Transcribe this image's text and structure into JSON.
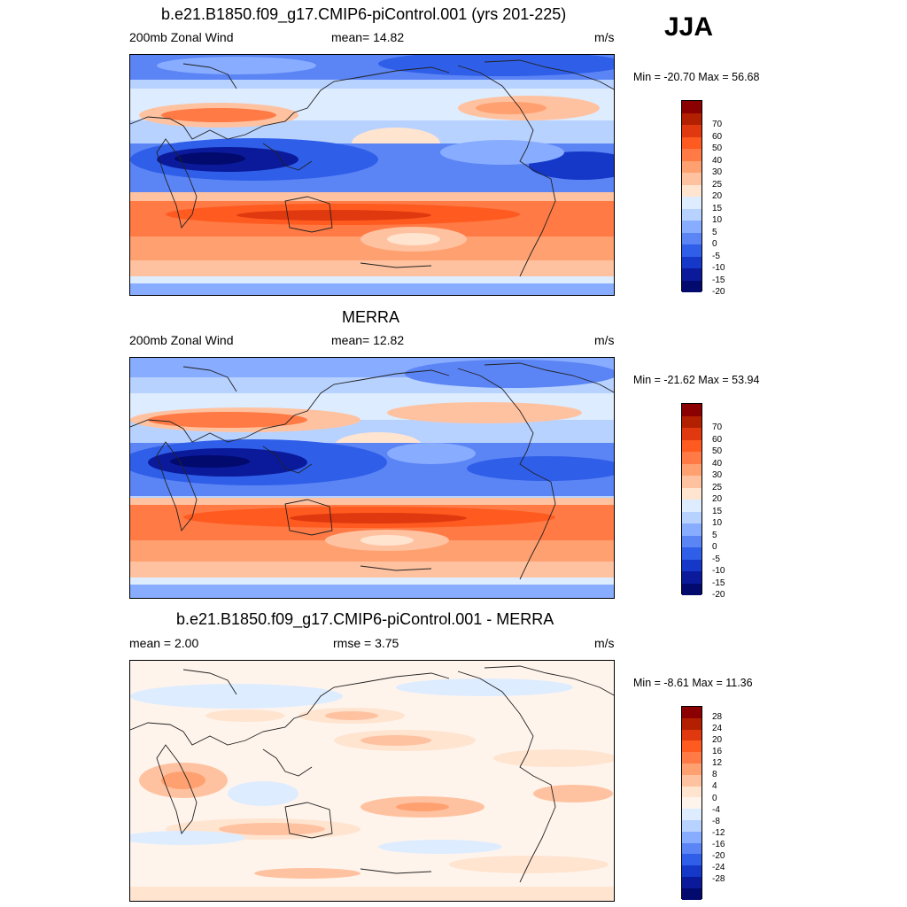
{
  "season": "JJA",
  "panels": [
    {
      "title": "b.e21.B1850.f09_g17.CMIP6-piControl.001 (yrs 201-225)",
      "left": "200mb Zonal Wind",
      "mid": "mean=  14.82",
      "units": "m/s",
      "minmax": "Min = -20.70 Max =  56.68",
      "colorbar_labels": [
        "70",
        "60",
        "50",
        "40",
        "30",
        "25",
        "20",
        "15",
        "10",
        "5",
        "0",
        "-5",
        "-10",
        "-15",
        "-20"
      ]
    },
    {
      "title": "MERRA",
      "left": "200mb Zonal Wind",
      "mid": "mean=  12.82",
      "units": "m/s",
      "minmax": "Min = -21.62 Max =  53.94",
      "colorbar_labels": [
        "70",
        "60",
        "50",
        "40",
        "30",
        "25",
        "20",
        "15",
        "10",
        "5",
        "0",
        "-5",
        "-10",
        "-15",
        "-20"
      ]
    },
    {
      "title": "b.e21.B1850.f09_g17.CMIP6-piControl.001 - MERRA",
      "left": "mean =   2.00",
      "mid": "rmse =   3.75",
      "units": "m/s",
      "minmax": "Min =  -8.61 Max =  11.36",
      "colorbar_labels": [
        "28",
        "24",
        "20",
        "16",
        "12",
        "8",
        "4",
        "0",
        "-4",
        "-8",
        "-12",
        "-16",
        "-20",
        "-24",
        "-28"
      ]
    }
  ],
  "colors": {
    "wind_scale": [
      "#8b0000",
      "#b22000",
      "#e0380f",
      "#ff5a1f",
      "#ff7a45",
      "#ffa070",
      "#ffc2a0",
      "#ffe4d0",
      "#ddecff",
      "#b8d2ff",
      "#88acff",
      "#5b84f5",
      "#2f5ee8",
      "#1538c8",
      "#0a1a9a",
      "#020a6e"
    ],
    "diff_scale": [
      "#8b0000",
      "#b22000",
      "#e0380f",
      "#ff5a1f",
      "#ff7a45",
      "#ffa070",
      "#ffc2a0",
      "#ffe4d0",
      "#fff4ec",
      "#ddecff",
      "#b8d2ff",
      "#88acff",
      "#5b84f5",
      "#2f5ee8",
      "#1538c8",
      "#0a1a9a",
      "#020a6e"
    ]
  }
}
